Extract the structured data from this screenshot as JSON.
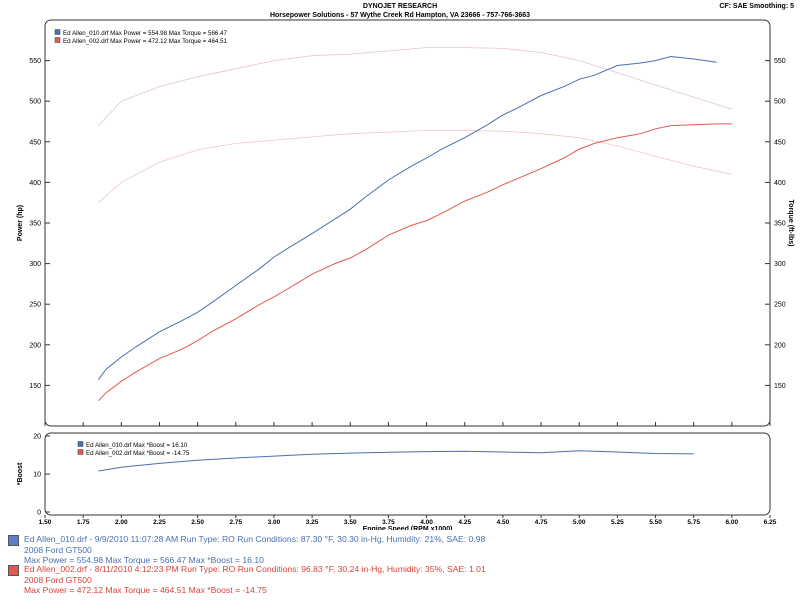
{
  "header": {
    "title": "DYNOJET RESEARCH",
    "address": "Horsepower Solutions - 57 Wythe Creek Rd    Hampton, VA 23666 - 757-766-3663",
    "settings": "CF: SAE  Smoothing: 5"
  },
  "colors": {
    "run1": "#4a6fb0",
    "run2": "#e05a50",
    "run1_faint": "#e3c4d6",
    "run2_faint": "#f1c9c6"
  },
  "chart_data": [
    {
      "type": "line",
      "title": "",
      "xlabel": "Engine Speed (RPM x1000)",
      "ylabel": "Power (hp)",
      "y2label": "Torque (ft-lbs)",
      "xlim": [
        1.5,
        6.25
      ],
      "ylim": [
        100,
        600
      ],
      "grid": false,
      "legend_position": "top-left",
      "legend": [
        "Ed Allen_010.drf Max Power = 554.98   Max Torque = 566.47",
        "Ed Allen_002.drf Max Power = 472.12   Max Torque = 464.51"
      ],
      "x_ticks": [
        "1.50",
        "1.75",
        "2.00",
        "2.25",
        "2.50",
        "2.75",
        "3.00",
        "3.25",
        "3.50",
        "3.75",
        "4.00",
        "4.25",
        "4.50",
        "4.75",
        "5.00",
        "5.25",
        "5.50",
        "5.75",
        "6.00",
        "6.25"
      ],
      "y_ticks": [
        "150",
        "200",
        "250",
        "300",
        "350",
        "400",
        "450",
        "500",
        "550"
      ],
      "series": [
        {
          "name": "Ed Allen_010.drf Power",
          "color": "#4a6fb0",
          "x": [
            1.85,
            1.9,
            2.0,
            2.1,
            2.25,
            2.4,
            2.5,
            2.6,
            2.75,
            2.9,
            3.0,
            3.1,
            3.25,
            3.4,
            3.5,
            3.6,
            3.75,
            3.9,
            4.0,
            4.1,
            4.25,
            4.4,
            4.5,
            4.6,
            4.75,
            4.9,
            5.0,
            5.1,
            5.25,
            5.4,
            5.5,
            5.6,
            5.75,
            5.9
          ],
          "y": [
            157,
            170,
            185,
            198,
            216,
            230,
            240,
            253,
            273,
            293,
            308,
            320,
            337,
            355,
            367,
            382,
            403,
            420,
            430,
            441,
            455,
            471,
            483,
            492,
            507,
            518,
            527,
            532,
            544,
            547,
            550,
            555,
            552,
            548
          ]
        },
        {
          "name": "Ed Allen_002.drf Power",
          "color": "#e05a50",
          "x": [
            1.85,
            1.9,
            2.0,
            2.1,
            2.25,
            2.4,
            2.5,
            2.6,
            2.75,
            2.9,
            3.0,
            3.1,
            3.25,
            3.4,
            3.5,
            3.6,
            3.75,
            3.9,
            4.0,
            4.1,
            4.25,
            4.4,
            4.5,
            4.6,
            4.75,
            4.9,
            5.0,
            5.1,
            5.25,
            5.4,
            5.5,
            5.6,
            5.75,
            5.9,
            6.0
          ],
          "y": [
            131,
            141,
            155,
            167,
            183,
            195,
            205,
            217,
            232,
            249,
            259,
            270,
            287,
            300,
            307,
            317,
            335,
            347,
            353,
            362,
            377,
            388,
            397,
            405,
            417,
            430,
            441,
            448,
            455,
            460,
            466,
            470,
            471,
            472,
            472
          ]
        },
        {
          "name": "Ed Allen_010.drf Torque",
          "color": "#e3c4d6",
          "x": [
            1.85,
            2.0,
            2.25,
            2.5,
            2.75,
            3.0,
            3.25,
            3.5,
            3.75,
            4.0,
            4.25,
            4.5,
            4.75,
            5.0,
            5.25,
            5.5,
            5.75,
            6.0
          ],
          "y": [
            470,
            500,
            518,
            530,
            540,
            550,
            556,
            558,
            562,
            566,
            566,
            565,
            560,
            550,
            535,
            520,
            505,
            490
          ]
        },
        {
          "name": "Ed Allen_002.drf Torque",
          "color": "#f1c9c6",
          "x": [
            1.85,
            2.0,
            2.25,
            2.5,
            2.75,
            3.0,
            3.25,
            3.5,
            3.75,
            4.0,
            4.25,
            4.5,
            4.75,
            5.0,
            5.25,
            5.5,
            5.75,
            6.0
          ],
          "y": [
            375,
            400,
            425,
            440,
            448,
            452,
            456,
            460,
            462,
            464,
            464,
            463,
            460,
            455,
            445,
            432,
            420,
            410
          ]
        }
      ]
    },
    {
      "type": "line",
      "ylabel": "*Boost",
      "xlim": [
        1.5,
        6.25
      ],
      "ylim": [
        0,
        20
      ],
      "legend_position": "top-left",
      "legend": [
        "Ed Allen_010.drf Max *Boost = 16.10",
        "Ed Allen_002.drf Max *Boost = -14.75"
      ],
      "y_ticks": [
        "0",
        "10",
        "20"
      ],
      "series": [
        {
          "name": "Ed Allen_010.drf *Boost",
          "color": "#4a6fb0",
          "x": [
            1.85,
            2.0,
            2.25,
            2.5,
            2.75,
            3.0,
            3.25,
            3.5,
            3.75,
            4.0,
            4.25,
            4.5,
            4.75,
            5.0,
            5.25,
            5.5,
            5.75
          ],
          "y": [
            10.8,
            11.8,
            12.8,
            13.6,
            14.2,
            14.7,
            15.2,
            15.5,
            15.7,
            15.9,
            16.0,
            15.8,
            15.6,
            16.1,
            15.8,
            15.4,
            15.3
          ]
        }
      ]
    }
  ],
  "runs": [
    {
      "line1": "Ed Allen_010.drf - 9/9/2010 11:07:28 AM  Run Type: RO  Run Conditions: 87.30 °F, 30.30 in-Hg,  Humidity:  21%, SAE: 0.98",
      "line2": "2008 Ford GT500",
      "line3": "Max Power = 554.98  Max Torque = 566.47  Max *Boost = 16.10"
    },
    {
      "line1": "Ed Allen_002.drf - 8/11/2010 4:12:23 PM  Run Type: RO  Run Conditions: 96.83 °F, 30.24 in-Hg,  Humidity:  35%, SAE: 1.01",
      "line2": "2008 Ford GT500",
      "line3": "Max Power = 472.12  Max Torque = 464.51  Max *Boost = -14.75"
    }
  ]
}
